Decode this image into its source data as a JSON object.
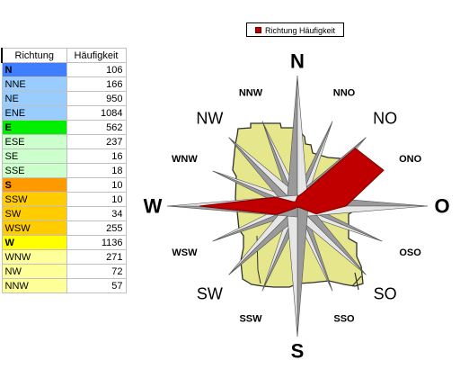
{
  "legend": {
    "label": "Richtung Häufigkeit",
    "color": "#c00000"
  },
  "table": {
    "header_direction": "Richtung",
    "header_frequency": "Häufigkeit",
    "rows": [
      {
        "direction": "N",
        "frequency": "106",
        "color": "#3f7fff",
        "bold": true
      },
      {
        "direction": "NNE",
        "frequency": "166",
        "color": "#99ccff",
        "bold": false
      },
      {
        "direction": "NE",
        "frequency": "950",
        "color": "#99ccff",
        "bold": false
      },
      {
        "direction": "ENE",
        "frequency": "1084",
        "color": "#99ccff",
        "bold": false
      },
      {
        "direction": "E",
        "frequency": "562",
        "color": "#00ee00",
        "bold": true
      },
      {
        "direction": "ESE",
        "frequency": "237",
        "color": "#ccffcc",
        "bold": false
      },
      {
        "direction": "SE",
        "frequency": "16",
        "color": "#ccffcc",
        "bold": false
      },
      {
        "direction": "SSE",
        "frequency": "18",
        "color": "#ccffcc",
        "bold": false
      },
      {
        "direction": "S",
        "frequency": "10",
        "color": "#ff9900",
        "bold": true
      },
      {
        "direction": "SSW",
        "frequency": "10",
        "color": "#ffcc00",
        "bold": false
      },
      {
        "direction": "SW",
        "frequency": "34",
        "color": "#ffcc00",
        "bold": false
      },
      {
        "direction": "WSW",
        "frequency": "255",
        "color": "#ffcc00",
        "bold": false
      },
      {
        "direction": "W",
        "frequency": "1136",
        "color": "#ffff00",
        "bold": true
      },
      {
        "direction": "WNW",
        "frequency": "271",
        "color": "#ffff99",
        "bold": false
      },
      {
        "direction": "NW",
        "frequency": "72",
        "color": "#ffff99",
        "bold": false
      },
      {
        "direction": "NNW",
        "frequency": "57",
        "color": "#ffff99",
        "bold": false
      }
    ]
  },
  "chart_data": {
    "type": "radar",
    "series": [
      {
        "name": "Richtung Häufigkeit",
        "color": "#c00000"
      }
    ],
    "directions": [
      "N",
      "NNO",
      "NO",
      "ONO",
      "O",
      "OSO",
      "SO",
      "SSO",
      "S",
      "SSW",
      "SW",
      "WSW",
      "W",
      "WNW",
      "NW",
      "NNW"
    ],
    "values": [
      106,
      166,
      950,
      1084,
      562,
      237,
      16,
      18,
      10,
      10,
      34,
      255,
      1136,
      271,
      72,
      57
    ],
    "rlim": [
      0,
      1200
    ],
    "compass_labels": {
      "cardinal": [
        "N",
        "O",
        "S",
        "W"
      ],
      "intercardinal": [
        "NO",
        "SO",
        "SW",
        "NW"
      ],
      "secondary": [
        "NNO",
        "ONO",
        "OSO",
        "SSO",
        "SSW",
        "WSW",
        "WNW",
        "NNW"
      ]
    }
  }
}
